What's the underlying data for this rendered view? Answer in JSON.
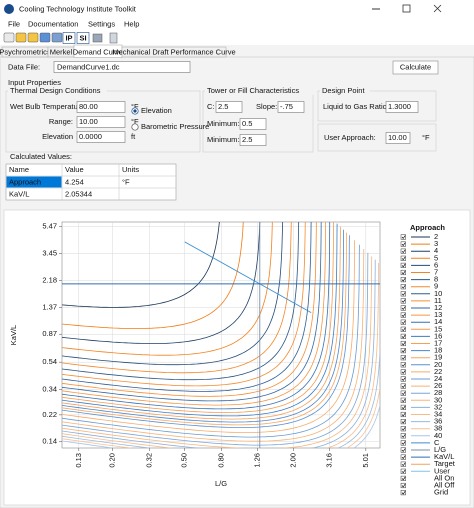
{
  "window": {
    "title": "Cooling Technology Institute Toolkit"
  },
  "menu": [
    "File",
    "Documentation",
    "Settings",
    "Help"
  ],
  "toolbar": [
    "IP",
    "SI"
  ],
  "tabs": [
    "Psychrometrics",
    "Merkel",
    "Demand Curve",
    "Mechanical Draft Performance Curve"
  ],
  "data_file": {
    "label": "Data File:",
    "value": "DemandCurve1.dc",
    "button": "Calculate"
  },
  "input_properties": {
    "title": "Input Properties",
    "thermal": {
      "title": "Thermal Design Conditions",
      "wet_bulb": {
        "label": "Wet Bulb Temperature:",
        "value": "80.00",
        "unit": "°F"
      },
      "range": {
        "label": "Range:",
        "value": "10.00",
        "unit": "°F"
      },
      "elevation": {
        "label": "Elevation",
        "value": "0.0000",
        "unit": "ft"
      },
      "options": [
        "Elevation",
        "Barometric Pressure"
      ]
    },
    "tower": {
      "title": "Tower or Fill Characteristics",
      "c": {
        "label": "C:",
        "value": 2.5
      },
      "slope": {
        "label": "Slope:",
        "value": {
          "value": -0.75,
          "label": "-.75"
        }
      },
      "minimum_1": {
        "label": "Minimum:",
        "value": 0.5
      },
      "minimum_2": {
        "label": "Minimum:",
        "value": 2.5
      }
    },
    "design": {
      "title": "Design Point",
      "ratio": {
        "label": "Liquid to Gas Ratio:",
        "value": {
          "value": 1.3,
          "label": "1.3000"
        }
      },
      "user_approach": {
        "label": "User Approach:",
        "value": "10.00",
        "unit": "°F"
      }
    }
  },
  "calculated": {
    "title": "Calculated Values:",
    "columns": [
      "Name",
      "Value",
      "Units"
    ],
    "rows": [
      {
        "name": "Approach",
        "value": 4.254,
        "units": "°F"
      },
      {
        "name": "KaV/L",
        "value": 2.05344
      }
    ]
  },
  "chart": {
    "type": "line",
    "xlabel": "L/G",
    "ylabel": "KaV/L",
    "log": true,
    "grid": true,
    "xlim": [
      0.105,
      6.0
    ],
    "ylim": [
      0.125,
      5.9
    ],
    "xticks": [
      0.13,
      {
        "value": 0.2,
        "label": "0.20"
      },
      0.32,
      {
        "value": 0.5,
        "label": "0.50"
      },
      {
        "value": 0.8,
        "label": "0.80"
      },
      1.26,
      {
        "value": 2,
        "label": "2.00"
      },
      3.16,
      5.01
    ],
    "yticks": [
      5.47,
      3.45,
      2.18,
      1.37,
      0.87,
      0.54,
      0.34,
      0.22,
      0.14
    ],
    "legend_title": "Approach",
    "approaches": [
      2,
      3,
      4,
      5,
      6,
      7,
      8,
      9,
      10,
      11,
      12,
      13,
      14,
      15,
      16,
      17,
      18,
      19,
      20,
      22,
      24,
      26,
      28,
      30,
      32,
      34,
      36,
      38,
      40
    ],
    "toggles": [
      "C",
      "L/G",
      "KaV/L",
      "Target",
      "User",
      "All On",
      "All Off",
      "Grid"
    ]
  }
}
